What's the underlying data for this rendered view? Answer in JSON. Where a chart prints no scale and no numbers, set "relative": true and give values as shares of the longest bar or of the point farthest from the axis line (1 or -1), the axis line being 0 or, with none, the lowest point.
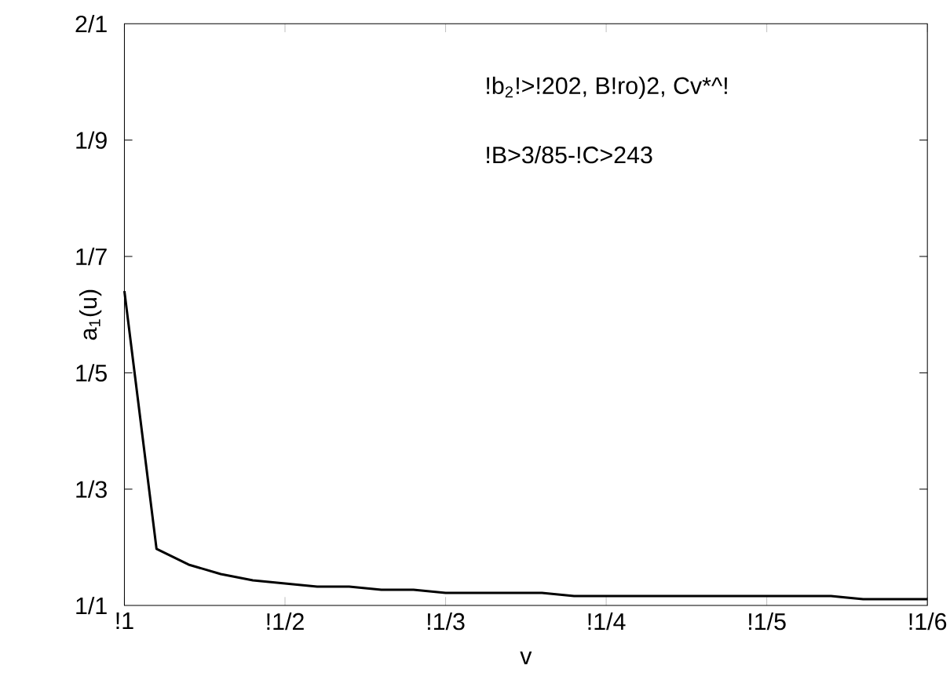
{
  "chart_data": {
    "type": "line",
    "xlabel": "v",
    "ylabel": "a$_{1}$(u)",
    "relative": true,
    "annotations": [
      "1/1",
      "1/3",
      "1/5",
      "1/7",
      "1/9",
      "2/1",
      "!b$_{2}$!>!202, B!ro)2, Cv*^!",
      "!B>3/85-!C>243"
    ],
    "categories": [
      "!1",
      null,
      null,
      null,
      null,
      "!1/2",
      null,
      null,
      null,
      null,
      "!1/3",
      null,
      null,
      null,
      null,
      "!1/4",
      null,
      null,
      null,
      null,
      "!1/5",
      null,
      null,
      null,
      null,
      "!1/6"
    ],
    "values": [
      1,
      0.18,
      0.13,
      0.1,
      0.08,
      0.07,
      0.06,
      0.06,
      0.05,
      0.05,
      0.04,
      0.04,
      0.04,
      0.04,
      0.03,
      0.03,
      0.03,
      0.03,
      0.03,
      0.03,
      0.03,
      0.03,
      0.03,
      0.02,
      0.02,
      0.02
    ],
    "color": "#000000"
  }
}
